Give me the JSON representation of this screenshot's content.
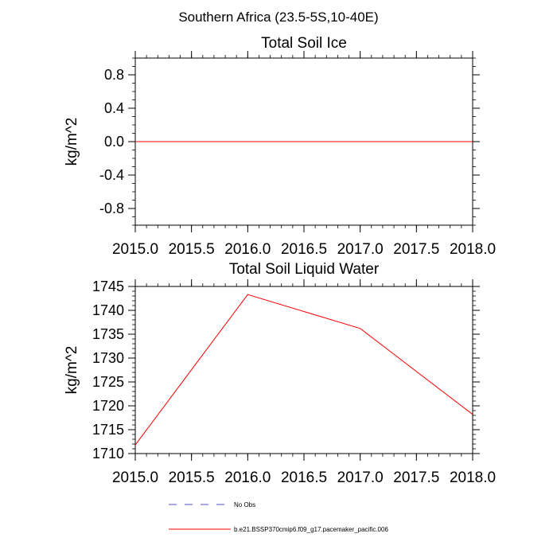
{
  "figure_title": "Southern Africa (23.5-5S,10-40E)",
  "colors": {
    "model_line": "#ff0000",
    "obs_line": "#4b4bd0",
    "axes": "#000000",
    "background": "#ffffff"
  },
  "legend": {
    "placement": "bottom",
    "entries": [
      {
        "label": "No Obs",
        "style": "dashed",
        "color": "#4b4bd0"
      },
      {
        "label": "b.e21.BSSP370cmip6.f09_g17.pacemaker_pacific.006",
        "style": "solid",
        "color": "#ff0000"
      }
    ]
  },
  "chart_data": [
    {
      "type": "line",
      "title": "Total Soil Ice",
      "ylabel": "kg/m^2",
      "xlabel": "",
      "xlim": [
        2015.0,
        2018.0
      ],
      "ylim": [
        -1.0,
        1.0
      ],
      "xticks": [
        2015.0,
        2015.5,
        2016.0,
        2016.5,
        2017.0,
        2017.5,
        2018.0
      ],
      "xtick_labels": [
        "2015.0",
        "2015.5",
        "2016.0",
        "2016.5",
        "2017.0",
        "2017.5",
        "2018.0"
      ],
      "yticks": [
        -0.8,
        -0.4,
        0.0,
        0.4,
        0.8
      ],
      "ytick_labels": [
        "-0.8",
        "-0.4",
        "0.0",
        "0.4",
        "0.8"
      ],
      "yminor_step": 0.1,
      "xminor_step": 0.1,
      "grid": false,
      "series": [
        {
          "name": "b.e21.BSSP370cmip6.f09_g17.pacemaker_pacific.006",
          "color": "#ff0000",
          "x": [
            2015.0,
            2016.0,
            2017.0,
            2018.0
          ],
          "y": [
            0.0,
            0.0,
            0.0,
            0.0
          ]
        }
      ]
    },
    {
      "type": "line",
      "title": "Total Soil Liquid Water",
      "ylabel": "kg/m^2",
      "xlabel": "",
      "xlim": [
        2015.0,
        2018.0
      ],
      "ylim": [
        1710,
        1745
      ],
      "xticks": [
        2015.0,
        2015.5,
        2016.0,
        2016.5,
        2017.0,
        2017.5,
        2018.0
      ],
      "xtick_labels": [
        "2015.0",
        "2015.5",
        "2016.0",
        "2016.5",
        "2017.0",
        "2017.5",
        "2018.0"
      ],
      "yticks": [
        1710,
        1715,
        1720,
        1725,
        1730,
        1735,
        1740,
        1745
      ],
      "ytick_labels": [
        "1710",
        "1715",
        "1720",
        "1725",
        "1730",
        "1735",
        "1740",
        "1745"
      ],
      "yminor_step": 1,
      "xminor_step": 0.1,
      "grid": false,
      "series": [
        {
          "name": "b.e21.BSSP370cmip6.f09_g17.pacemaker_pacific.006",
          "color": "#ff0000",
          "x": [
            2015.0,
            2016.0,
            2017.0,
            2018.0
          ],
          "y": [
            1711.8,
            1743.3,
            1736.2,
            1718.2
          ]
        }
      ]
    }
  ]
}
